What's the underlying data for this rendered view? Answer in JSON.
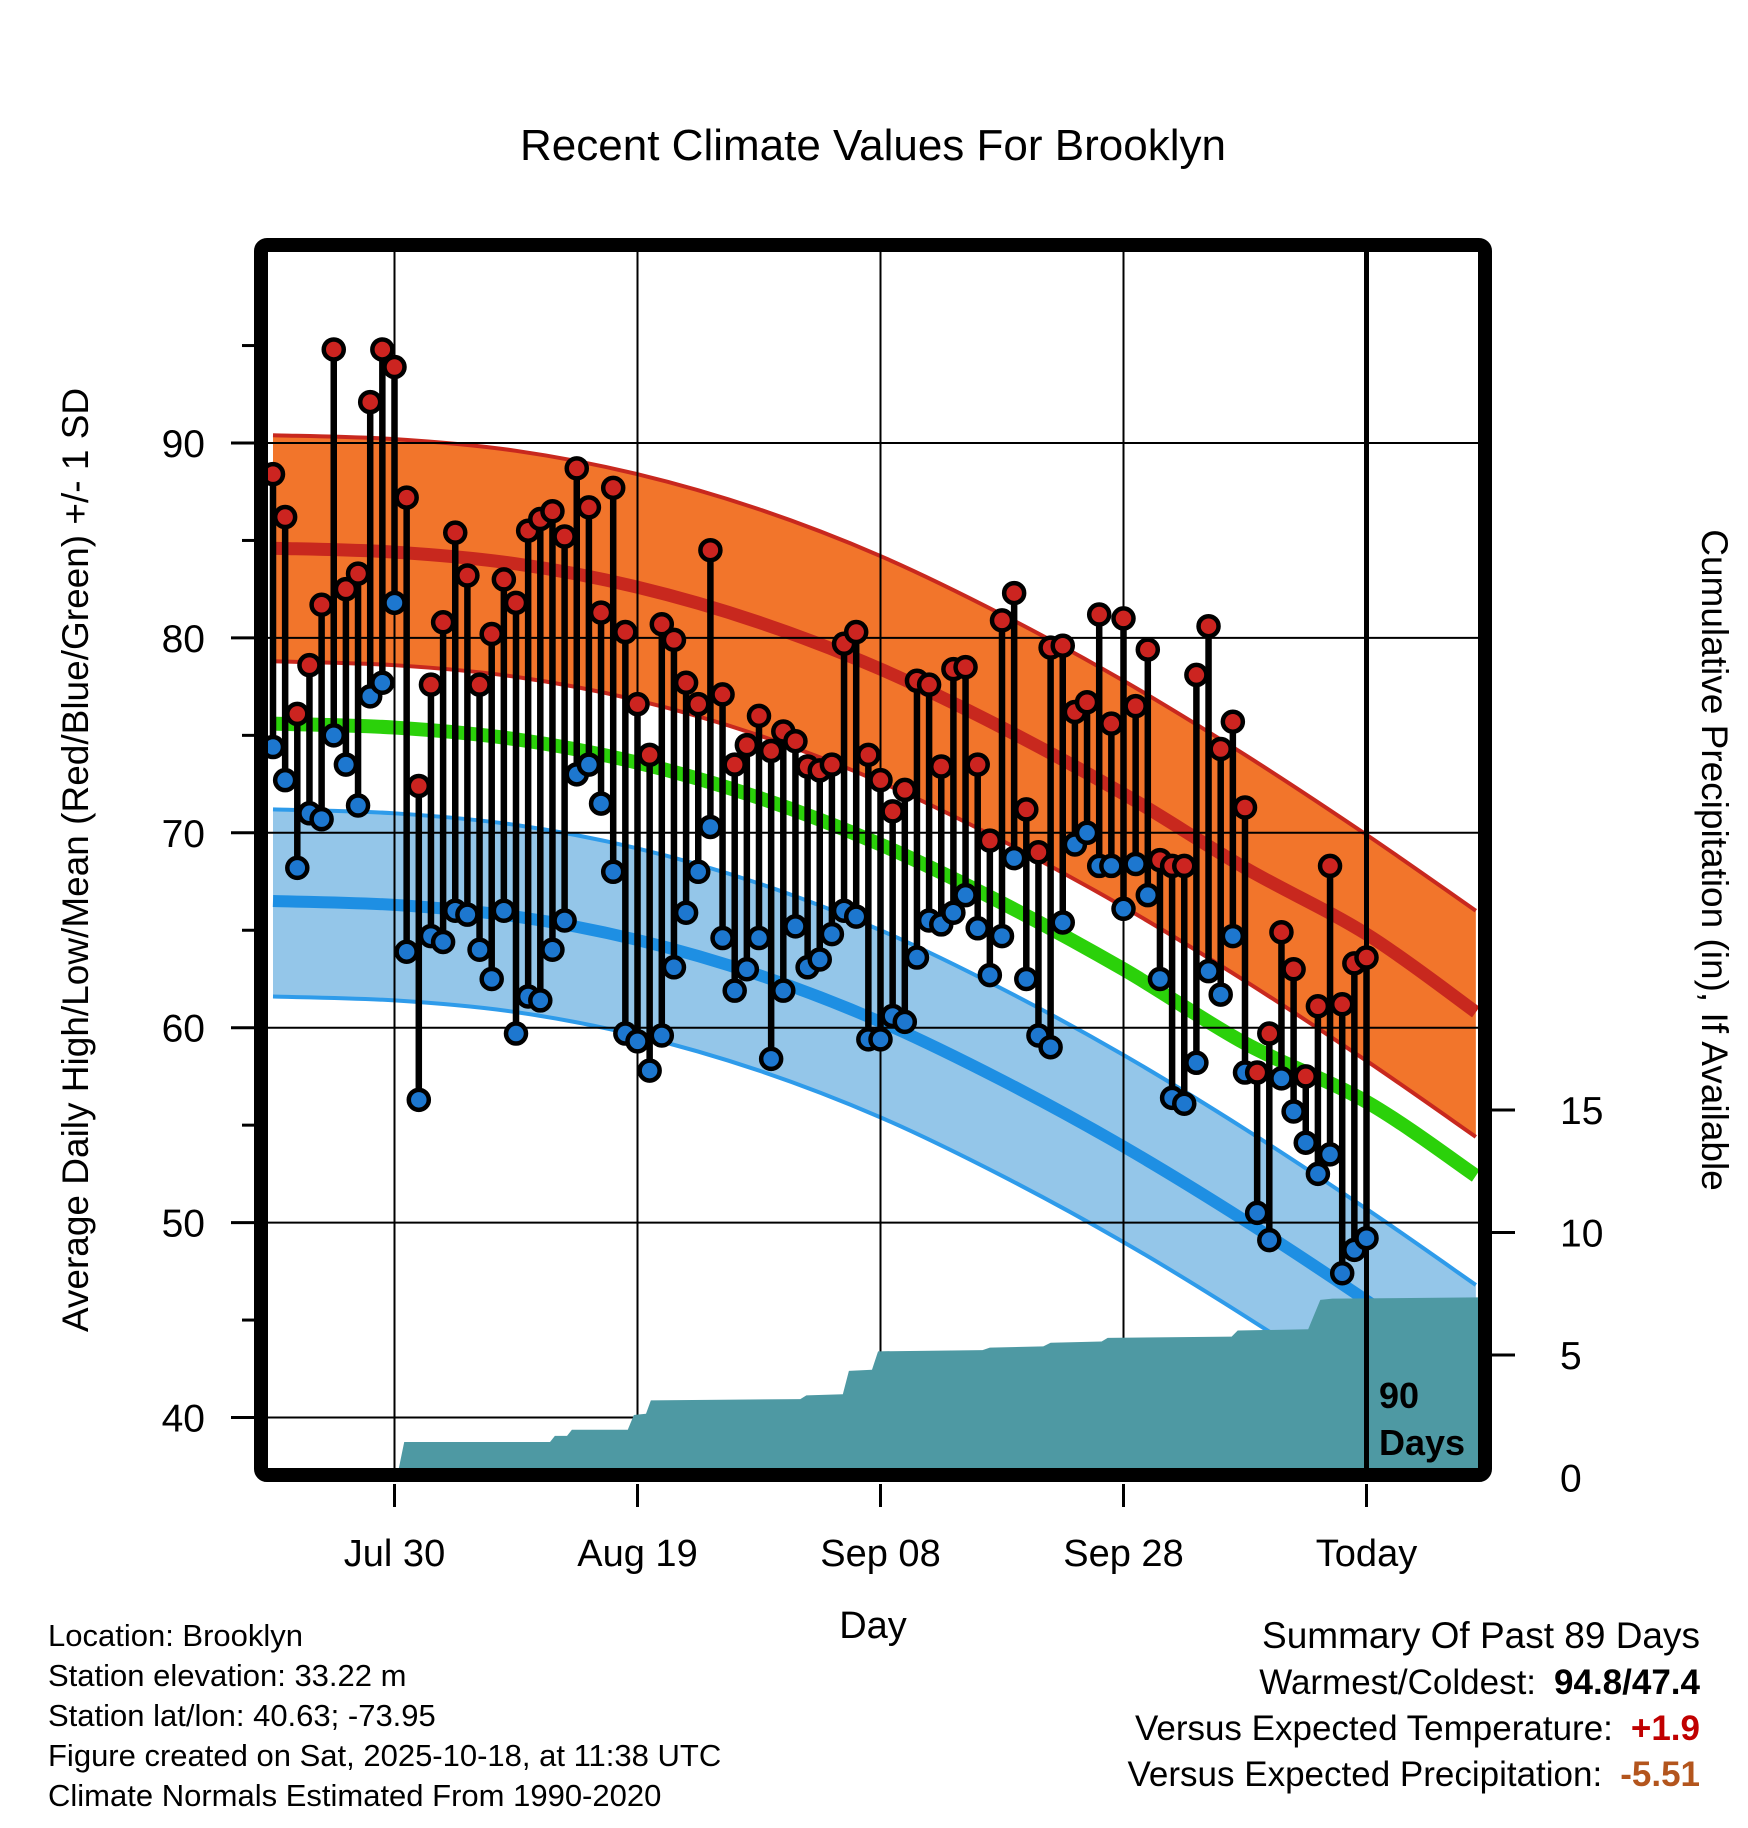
{
  "title": "Recent Climate Values For Brooklyn",
  "axes": {
    "x_label": "Day",
    "y_left_label": "Average Daily High/Low/Mean (Red/Blue/Green) +/- 1 SD",
    "y_right_label": "Cumulative Precipitation (in), If Available",
    "x_ticks": [
      {
        "label": "Jul 30",
        "day": 10
      },
      {
        "label": "Aug 19",
        "day": 30
      },
      {
        "label": "Sep 08",
        "day": 50
      },
      {
        "label": "Sep 28",
        "day": 70
      },
      {
        "label": "Today",
        "day": 90
      }
    ],
    "y_left_ticks": [
      40,
      50,
      60,
      70,
      80,
      90
    ],
    "y_left_minor_ticks": [
      45,
      55,
      65,
      75,
      85,
      95
    ],
    "y_right_ticks": [
      0,
      5,
      10,
      15
    ]
  },
  "annotation_90days": {
    "day": 90,
    "lines": [
      "90",
      "Days"
    ]
  },
  "footer_left": [
    "Location: Brooklyn",
    "Station elevation: 33.22 m",
    "Station lat/lon: 40.63; -73.95",
    "Figure created on Sat, 2025-10-18, at 11:38 UTC",
    "Climate Normals Estimated From 1990-2020"
  ],
  "summary": {
    "title": "Summary Of Past 89 Days",
    "rows": [
      {
        "label": "Warmest/Coldest:",
        "value": "94.8/47.4",
        "value_color": "#000000"
      },
      {
        "label": "Versus Expected Temperature:",
        "value": "+1.9",
        "value_color": "#C00000"
      },
      {
        "label": "Versus Expected Precipitation:",
        "value": "-5.51",
        "value_color": "#B3551D"
      }
    ]
  },
  "colors": {
    "orange_band": "#F2752B",
    "band_outline_red": "#C8281E",
    "high_mean_line": "#C8281E",
    "mean_line_green": "#2BD10A",
    "blue_band": "#94C6E9",
    "blue_band_outline": "#2E9BEA",
    "low_mean_line": "#1E8FE3",
    "precip_fill": "#4E99A3",
    "high_dot": "#CC2420",
    "low_dot": "#1D77CF",
    "stem": "#000000",
    "grid": "#000000",
    "frame": "#000000"
  },
  "chart_data": {
    "type": "composite",
    "title": "Recent Climate Values For Brooklyn",
    "xlabel": "Day",
    "ylabel_left": "Average Daily High/Low/Mean (Red/Blue/Green) +/- 1 SD",
    "ylabel_right": "Cumulative Precipitation (in), If Available",
    "temp_axis_ticks": [
      40,
      50,
      60,
      70,
      80,
      90
    ],
    "precip_axis_ticks": [
      0,
      5,
      10,
      15
    ],
    "grid": true,
    "daily": {
      "dates": [
        "Jul 20",
        "Jul 21",
        "Jul 22",
        "Jul 23",
        "Jul 24",
        "Jul 25",
        "Jul 26",
        "Jul 27",
        "Jul 28",
        "Jul 29",
        "Jul 30",
        "Jul 31",
        "Aug 01",
        "Aug 02",
        "Aug 03",
        "Aug 04",
        "Aug 05",
        "Aug 06",
        "Aug 07",
        "Aug 08",
        "Aug 09",
        "Aug 10",
        "Aug 11",
        "Aug 12",
        "Aug 13",
        "Aug 14",
        "Aug 15",
        "Aug 16",
        "Aug 17",
        "Aug 18",
        "Aug 19",
        "Aug 20",
        "Aug 21",
        "Aug 22",
        "Aug 23",
        "Aug 24",
        "Aug 25",
        "Aug 26",
        "Aug 27",
        "Aug 28",
        "Aug 29",
        "Aug 30",
        "Aug 31",
        "Sep 01",
        "Sep 02",
        "Sep 03",
        "Sep 04",
        "Sep 05",
        "Sep 06",
        "Sep 07",
        "Sep 08",
        "Sep 09",
        "Sep 10",
        "Sep 11",
        "Sep 12",
        "Sep 13",
        "Sep 14",
        "Sep 15",
        "Sep 16",
        "Sep 17",
        "Sep 18",
        "Sep 19",
        "Sep 20",
        "Sep 21",
        "Sep 22",
        "Sep 23",
        "Sep 24",
        "Sep 25",
        "Sep 26",
        "Sep 27",
        "Sep 28",
        "Sep 29",
        "Sep 30",
        "Oct 01",
        "Oct 02",
        "Oct 03",
        "Oct 04",
        "Oct 05",
        "Oct 06",
        "Oct 07",
        "Oct 08",
        "Oct 09",
        "Oct 10",
        "Oct 11",
        "Oct 12",
        "Oct 13",
        "Oct 14",
        "Oct 15",
        "Oct 16",
        "Oct 17",
        "Oct 18"
      ],
      "high": [
        88.4,
        86.2,
        76.1,
        78.6,
        81.7,
        94.8,
        82.5,
        83.3,
        92.1,
        94.8,
        93.9,
        87.2,
        72.4,
        77.6,
        80.8,
        85.4,
        83.2,
        77.6,
        80.2,
        83.0,
        81.8,
        85.5,
        86.1,
        86.5,
        85.2,
        88.7,
        86.7,
        81.3,
        87.7,
        80.3,
        76.6,
        74.0,
        80.7,
        79.9,
        77.7,
        76.6,
        84.5,
        77.1,
        73.5,
        74.5,
        76.0,
        74.2,
        75.2,
        74.7,
        73.4,
        73.2,
        73.5,
        79.7,
        80.3,
        74.0,
        72.7,
        71.1,
        72.2,
        77.8,
        77.6,
        73.4,
        78.4,
        78.5,
        73.5,
        69.6,
        80.9,
        82.3,
        71.2,
        69.0,
        79.5,
        79.6,
        76.2,
        76.7,
        81.2,
        75.6,
        81.0,
        76.5,
        79.4,
        68.6,
        68.3,
        68.3,
        78.1,
        80.6,
        74.3,
        75.7,
        71.3,
        57.7,
        59.7,
        64.9,
        63.0,
        57.5,
        61.1,
        68.3,
        61.2,
        63.3,
        63.6
      ],
      "low": [
        74.4,
        72.7,
        68.2,
        71.0,
        70.7,
        75.0,
        73.5,
        71.4,
        77.0,
        77.7,
        81.8,
        63.9,
        56.3,
        64.7,
        64.4,
        66.0,
        65.8,
        64.0,
        62.5,
        66.0,
        59.7,
        61.6,
        61.4,
        64.0,
        65.5,
        73.0,
        73.5,
        71.5,
        68.0,
        59.7,
        59.3,
        57.8,
        59.6,
        63.1,
        65.9,
        68.0,
        70.3,
        64.6,
        61.9,
        63.0,
        64.6,
        58.4,
        61.9,
        65.2,
        63.1,
        63.5,
        64.8,
        66.0,
        65.7,
        59.4,
        59.4,
        60.6,
        60.3,
        63.6,
        65.5,
        65.3,
        65.9,
        66.8,
        65.1,
        62.7,
        64.7,
        68.7,
        62.5,
        59.6,
        59.0,
        65.4,
        69.4,
        70.0,
        68.3,
        68.3,
        66.1,
        68.4,
        66.8,
        62.5,
        56.4,
        56.1,
        58.2,
        62.9,
        61.7,
        64.7,
        57.7,
        50.5,
        49.1,
        57.4,
        55.7,
        54.1,
        52.5,
        53.5,
        47.4,
        48.6,
        49.2
      ]
    },
    "climatology": {
      "days": [
        0,
        10,
        20,
        30,
        40,
        50,
        60,
        70,
        80,
        90,
        99
      ],
      "high_upper": [
        90.4,
        90.2,
        89.6,
        88.4,
        86.6,
        84.2,
        81.2,
        77.8,
        74.0,
        69.9,
        66.0
      ],
      "high_mean": [
        84.6,
        84.4,
        83.8,
        82.6,
        80.8,
        78.4,
        75.4,
        72.0,
        68.2,
        64.8,
        60.8
      ],
      "high_lower": [
        78.8,
        78.6,
        78.0,
        76.8,
        75.0,
        72.6,
        69.6,
        66.2,
        62.4,
        58.3,
        54.4
      ],
      "mean": [
        75.6,
        75.4,
        74.8,
        73.6,
        71.8,
        69.4,
        66.4,
        63.0,
        59.2,
        56.2,
        52.4
      ],
      "low_upper": [
        71.2,
        71.0,
        70.4,
        69.2,
        67.4,
        65.0,
        62.0,
        58.6,
        54.8,
        50.7,
        46.8
      ],
      "low_mean": [
        66.5,
        66.3,
        65.7,
        64.5,
        62.7,
        60.3,
        57.3,
        53.9,
        50.1,
        46.0,
        42.1
      ],
      "low_lower": [
        61.6,
        61.4,
        60.8,
        59.6,
        57.8,
        55.4,
        52.4,
        49.0,
        45.2,
        41.1,
        37.2
      ]
    },
    "cumulative_precip": {
      "units": "in",
      "points": [
        [
          10.2,
          0
        ],
        [
          10.8,
          1.45
        ],
        [
          22.8,
          1.45
        ],
        [
          23.2,
          1.7
        ],
        [
          24.2,
          1.7
        ],
        [
          24.6,
          1.95
        ],
        [
          29.2,
          1.95
        ],
        [
          29.7,
          2.55
        ],
        [
          30.7,
          2.6
        ],
        [
          31.1,
          3.15
        ],
        [
          43.4,
          3.2
        ],
        [
          43.9,
          3.35
        ],
        [
          46.9,
          3.4
        ],
        [
          47.4,
          4.35
        ],
        [
          49.3,
          4.4
        ],
        [
          49.8,
          5.15
        ],
        [
          58.4,
          5.2
        ],
        [
          59.0,
          5.3
        ],
        [
          63.4,
          5.35
        ],
        [
          64.0,
          5.5
        ],
        [
          68.2,
          5.55
        ],
        [
          68.7,
          5.7
        ],
        [
          78.9,
          5.75
        ],
        [
          79.4,
          6.0
        ],
        [
          85.2,
          6.05
        ],
        [
          86.2,
          7.25
        ],
        [
          87.2,
          7.3
        ],
        [
          99.2,
          7.35
        ]
      ]
    }
  }
}
